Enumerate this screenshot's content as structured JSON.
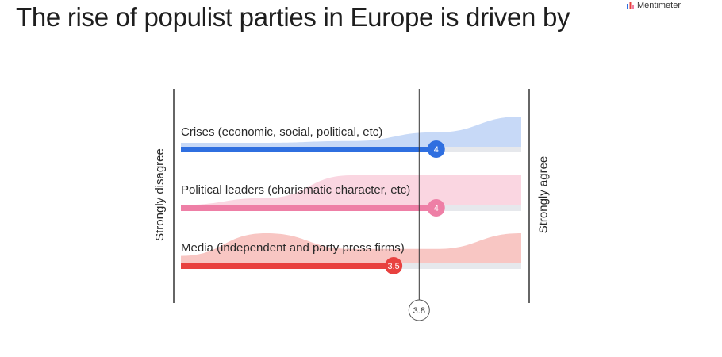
{
  "brand": {
    "name": "Mentimeter",
    "icon": "mentimeter-logo-icon"
  },
  "title": "The rise of populist parties in Europe is driven by",
  "chart_data": {
    "type": "scale",
    "xlim": [
      1,
      5
    ],
    "left_label": "Strongly disagree",
    "right_label": "Strongly agree",
    "average": {
      "value": 3.8,
      "label": "3.8"
    },
    "series": [
      {
        "statement": "Crises (economic, social, political, etc)",
        "mean": 4,
        "mean_label": "4",
        "color": "#2f6fe0",
        "fill": "#c7d9f7",
        "distribution": [
          0.25,
          0.25,
          0.3,
          0.55,
          1.0
        ]
      },
      {
        "statement": "Political leaders (charismatic character, etc)",
        "mean": 4,
        "mean_label": "4",
        "color": "#ee7fa6",
        "fill": "#fad6e1",
        "distribution": [
          0.15,
          0.35,
          1.0,
          1.0,
          1.0
        ]
      },
      {
        "statement": "Media (independent and party press firms)",
        "mean": 3.5,
        "mean_label": "3.5",
        "color": "#e8413f",
        "fill": "#f8c6c3",
        "distribution": [
          0.35,
          1.0,
          0.55,
          0.55,
          1.0
        ]
      }
    ]
  }
}
